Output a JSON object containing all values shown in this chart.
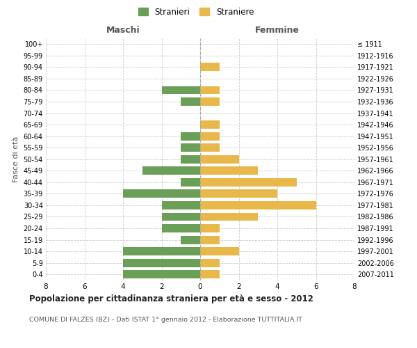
{
  "age_groups": [
    "0-4",
    "5-9",
    "10-14",
    "15-19",
    "20-24",
    "25-29",
    "30-34",
    "35-39",
    "40-44",
    "45-49",
    "50-54",
    "55-59",
    "60-64",
    "65-69",
    "70-74",
    "75-79",
    "80-84",
    "85-89",
    "90-94",
    "95-99",
    "100+"
  ],
  "birth_years": [
    "2007-2011",
    "2002-2006",
    "1997-2001",
    "1992-1996",
    "1987-1991",
    "1982-1986",
    "1977-1981",
    "1972-1976",
    "1967-1971",
    "1962-1966",
    "1957-1961",
    "1952-1956",
    "1947-1951",
    "1942-1946",
    "1937-1941",
    "1932-1936",
    "1927-1931",
    "1922-1926",
    "1917-1921",
    "1912-1916",
    "≤ 1911"
  ],
  "maschi": [
    4,
    4,
    4,
    1,
    2,
    2,
    2,
    4,
    1,
    3,
    1,
    1,
    1,
    0,
    0,
    1,
    2,
    0,
    0,
    0,
    0
  ],
  "femmine": [
    1,
    1,
    2,
    1,
    1,
    3,
    6,
    4,
    5,
    3,
    2,
    1,
    1,
    1,
    0,
    1,
    1,
    0,
    1,
    0,
    0
  ],
  "maschi_color": "#6a9f58",
  "femmine_color": "#e8b84b",
  "title": "Popolazione per cittadinanza straniera per età e sesso - 2012",
  "subtitle": "COMUNE DI FALZES (BZ) - Dati ISTAT 1° gennaio 2012 - Elaborazione TUTTITALIA.IT",
  "ylabel_left": "Fasce di età",
  "xlabel_left": "Maschi",
  "xlabel_right": "Femmine",
  "legend_maschi": "Stranieri",
  "legend_femmine": "Straniere",
  "xlim": 8,
  "background_color": "#ffffff",
  "grid_color": "#cccccc"
}
